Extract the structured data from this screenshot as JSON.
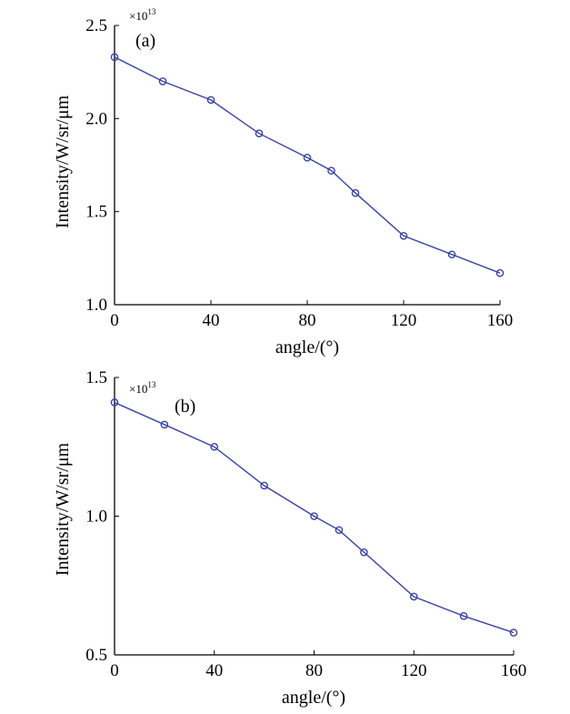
{
  "colors": {
    "series": "#3a43a0",
    "axis": "#000000",
    "background": "#ffffff"
  },
  "chart_data": [
    {
      "type": "line",
      "panel_label": "(a)",
      "scale_label": {
        "base": "×10",
        "exponent": "13"
      },
      "xlabel": "angle/(°)",
      "ylabel": "Intensity/W/sr/μm",
      "xlim": [
        0,
        160
      ],
      "ylim": [
        1.0,
        2.5
      ],
      "xticks": [
        0,
        40,
        80,
        120,
        160
      ],
      "xtick_labels": [
        "0",
        "40",
        "80",
        "120",
        "160"
      ],
      "yticks": [
        1.0,
        1.5,
        2.0,
        2.5
      ],
      "ytick_labels": [
        "1.0",
        "1.5",
        "2.0",
        "2.5"
      ],
      "grid": false,
      "series": [
        {
          "marker": "circle",
          "x": [
            0,
            20,
            40,
            60,
            80,
            90,
            100,
            120,
            140,
            160
          ],
          "y": [
            2.33,
            2.2,
            2.1,
            1.92,
            1.79,
            1.72,
            1.6,
            1.37,
            1.27,
            1.17
          ]
        }
      ]
    },
    {
      "type": "line",
      "panel_label": "(b)",
      "scale_label": {
        "base": "×10",
        "exponent": "13"
      },
      "xlabel": "angle/(°)",
      "ylabel": "Intensity/W/sr/μm",
      "xlim": [
        0,
        160
      ],
      "ylim": [
        0.5,
        1.5
      ],
      "xticks": [
        0,
        40,
        80,
        120,
        160
      ],
      "xtick_labels": [
        "0",
        "40",
        "80",
        "120",
        "160"
      ],
      "yticks": [
        0.5,
        1.0,
        1.5
      ],
      "ytick_labels": [
        "0.5",
        "1.0",
        "1.5"
      ],
      "grid": false,
      "series": [
        {
          "marker": "circle",
          "x": [
            0,
            20,
            40,
            60,
            80,
            90,
            100,
            120,
            140,
            160
          ],
          "y": [
            1.41,
            1.33,
            1.25,
            1.11,
            1.0,
            0.95,
            0.87,
            0.71,
            0.64,
            0.58
          ]
        }
      ]
    }
  ]
}
